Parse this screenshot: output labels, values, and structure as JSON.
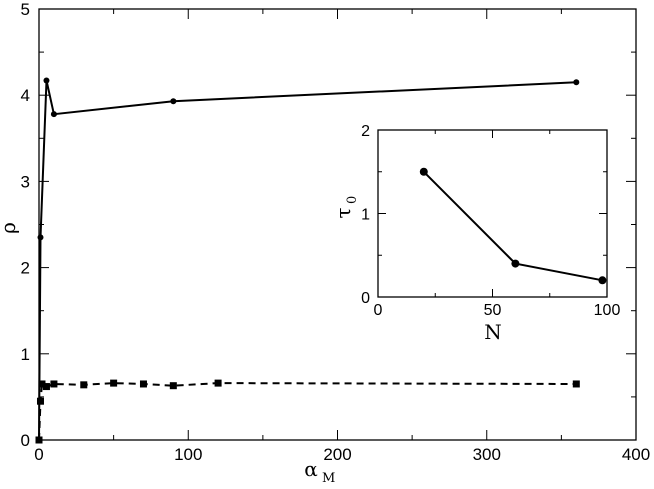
{
  "chart_data": [
    {
      "type": "line",
      "xlabel": "α",
      "xlabel_sub": "M",
      "ylabel": "ρ",
      "xlim": [
        0,
        400
      ],
      "ylim": [
        0,
        5
      ],
      "x_ticks": [
        "0",
        "100",
        "200",
        "300",
        "400"
      ],
      "y_ticks": [
        "0",
        "1",
        "2",
        "3",
        "4",
        "5"
      ],
      "grid": false,
      "series": [
        {
          "style": "solid",
          "marker": "circle",
          "x": [
            0,
            1,
            5,
            10,
            90,
            360
          ],
          "y": [
            0,
            2.35,
            4.17,
            3.78,
            3.93,
            4.15
          ]
        },
        {
          "style": "dashed",
          "marker": "square",
          "x": [
            0,
            1,
            2,
            5,
            10,
            30,
            50,
            70,
            90,
            120,
            360
          ],
          "y": [
            0,
            0.45,
            0.65,
            0.62,
            0.65,
            0.64,
            0.66,
            0.65,
            0.63,
            0.66,
            0.65
          ]
        }
      ]
    },
    {
      "type": "line",
      "xlabel": "N",
      "ylabel": "τ",
      "ylabel_sub": "0",
      "xlim": [
        0,
        100
      ],
      "ylim": [
        0,
        2
      ],
      "x_ticks": [
        "0",
        "50",
        "100"
      ],
      "y_ticks": [
        "0",
        "1",
        "2"
      ],
      "grid": false,
      "series": [
        {
          "style": "solid",
          "marker": "circle",
          "x": [
            20,
            60,
            98
          ],
          "y": [
            1.5,
            0.4,
            0.2
          ]
        }
      ]
    }
  ]
}
